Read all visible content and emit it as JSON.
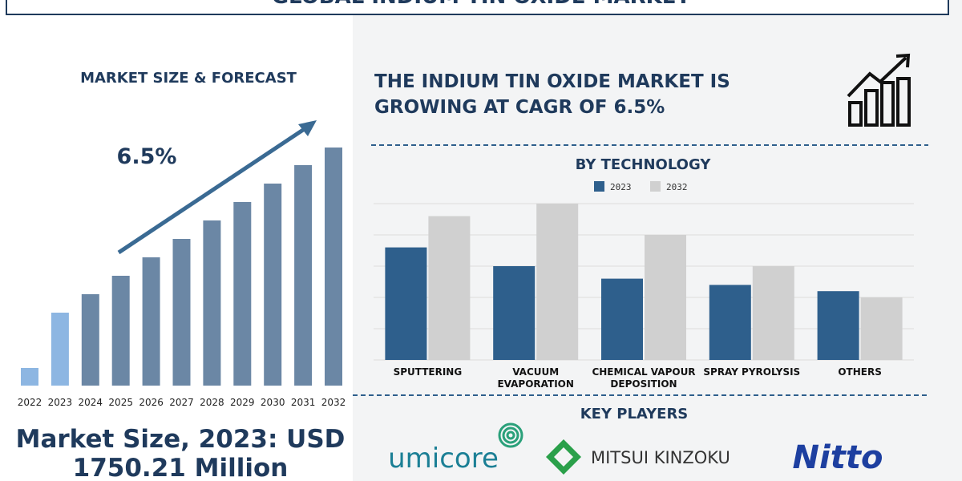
{
  "title": "GLOBAL INDIUM TIN OXIDE MARKET",
  "headline": [
    "THE INDIUM TIN OXIDE MARKET IS",
    "GROWING AT CAGR OF 6.5%"
  ],
  "market_size": [
    "Market Size, 2023: USD",
    "1750.21 Million"
  ],
  "key_players": {
    "title": "KEY PLAYERS",
    "names": [
      "umicore",
      "MITSUI KINZOKU",
      "Nitto"
    ]
  },
  "chart_data": [
    {
      "type": "bar",
      "title": "MARKET SIZE & FORECAST",
      "annotation": "6.5%",
      "categories": [
        "2022",
        "2023",
        "2024",
        "2025",
        "2026",
        "2027",
        "2028",
        "2029",
        "2030",
        "2031",
        "2032"
      ],
      "values": [
        22,
        91,
        114,
        137,
        160,
        183,
        206,
        229,
        252,
        275,
        297
      ],
      "colors": [
        "#8db6e2",
        "#8db6e2",
        "#6b87a5",
        "#6b87a5",
        "#6b87a5",
        "#6b87a5",
        "#6b87a5",
        "#6b87a5",
        "#6b87a5",
        "#6b87a5",
        "#6b87a5"
      ]
    },
    {
      "type": "grouped-bar",
      "title": "BY TECHNOLOGY",
      "categories": [
        "SPUTTERING",
        "VACUUM EVAPORATION",
        "CHEMICAL VAPOUR DEPOSITION",
        "SPRAY PYROLYSIS",
        "OTHERS"
      ],
      "series": [
        {
          "name": "2023",
          "color": "#2e5f8c",
          "values": [
            3.6,
            3.0,
            2.6,
            2.4,
            2.2
          ]
        },
        {
          "name": "2032",
          "color": "#d0d0d0",
          "values": [
            4.6,
            5.0,
            4.0,
            3.0,
            2.0
          ]
        }
      ],
      "ylim": [
        0,
        5
      ],
      "yticks": [
        0,
        1,
        2,
        3,
        4,
        5
      ],
      "grid": true
    }
  ]
}
